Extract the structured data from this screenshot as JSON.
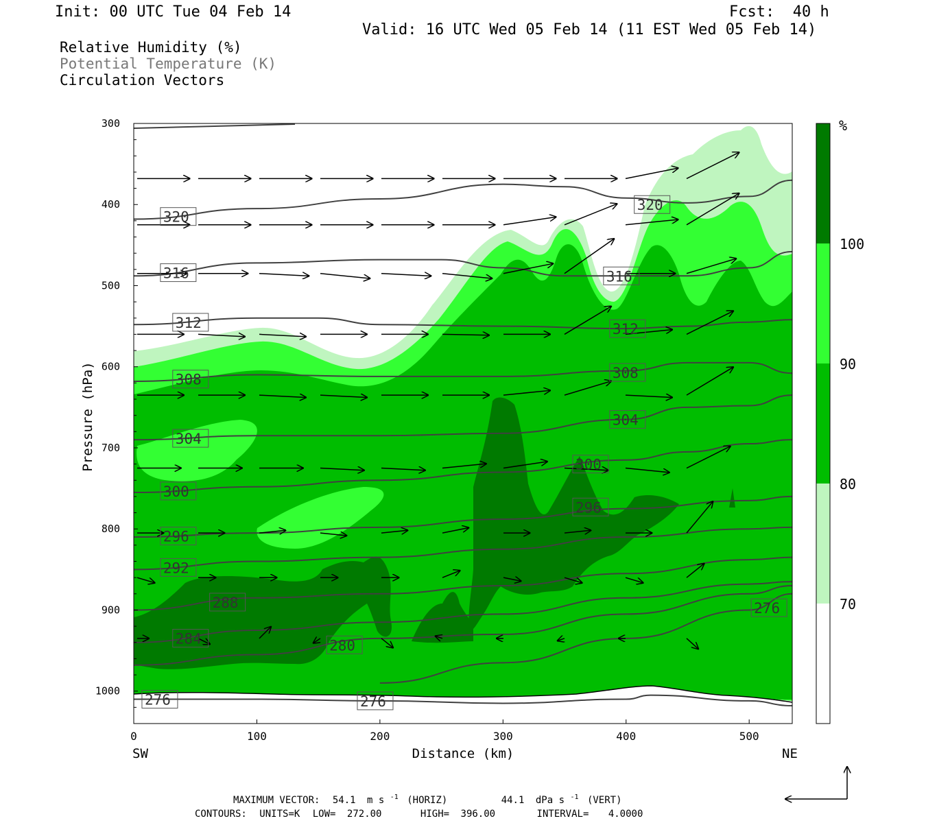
{
  "header": {
    "init": "Init: 00 UTC Tue 04 Feb 14",
    "fcst": "Fcst:  40 h",
    "valid": "Valid: 16 UTC Wed 05 Feb 14 (11 EST Wed 05 Feb 14)"
  },
  "legend": {
    "rh": "Relative Humidity (%)",
    "theta": "Potential Temperature (K)",
    "vectors": "Circulation Vectors"
  },
  "colors": {
    "rh_70": "#bff5bf",
    "rh_80": "#33ff33",
    "rh_90": "#00bd00",
    "rh_100": "#007a00",
    "contour": "#404040"
  },
  "chart_data": {
    "type": "contour",
    "xlabel": "Distance (km)",
    "ylabel": "Pressure (hPa)",
    "x_left_label": "SW",
    "x_right_label": "NE",
    "xlim": [
      0,
      535
    ],
    "ylim": [
      1040,
      300
    ],
    "x_ticks": [
      "0",
      "100",
      "200",
      "300",
      "400",
      "500"
    ],
    "y_ticks": [
      "300",
      "400",
      "500",
      "600",
      "700",
      "800",
      "900",
      "1000"
    ],
    "colorbar": {
      "unit": "%",
      "levels": [
        "70",
        "80",
        "90",
        "100"
      ]
    },
    "theta_contours": [
      {
        "label": "320",
        "pressure_at_x": [
          [
            0,
            418
          ],
          [
            100,
            405
          ],
          [
            200,
            393
          ],
          [
            300,
            375
          ],
          [
            350,
            378
          ],
          [
            400,
            392
          ],
          [
            450,
            398
          ],
          [
            500,
            390
          ],
          [
            535,
            370
          ]
        ]
      },
      {
        "label": "316",
        "pressure_at_x": [
          [
            0,
            488
          ],
          [
            100,
            472
          ],
          [
            200,
            468
          ],
          [
            250,
            468
          ],
          [
            300,
            478
          ],
          [
            350,
            488
          ],
          [
            400,
            488
          ],
          [
            450,
            488
          ],
          [
            500,
            478
          ],
          [
            535,
            458
          ]
        ]
      },
      {
        "label": "312",
        "pressure_at_x": [
          [
            0,
            548
          ],
          [
            100,
            540
          ],
          [
            150,
            540
          ],
          [
            200,
            548
          ],
          [
            300,
            550
          ],
          [
            400,
            553
          ],
          [
            450,
            550
          ],
          [
            500,
            545
          ],
          [
            535,
            542
          ]
        ]
      },
      {
        "label": "308",
        "pressure_at_x": [
          [
            0,
            618
          ],
          [
            100,
            610
          ],
          [
            200,
            612
          ],
          [
            300,
            612
          ],
          [
            400,
            605
          ],
          [
            450,
            595
          ],
          [
            500,
            595
          ],
          [
            535,
            608
          ]
        ]
      },
      {
        "label": "304",
        "pressure_at_x": [
          [
            0,
            690
          ],
          [
            100,
            685
          ],
          [
            200,
            685
          ],
          [
            300,
            682
          ],
          [
            400,
            665
          ],
          [
            450,
            650
          ],
          [
            500,
            648
          ],
          [
            535,
            635
          ]
        ]
      },
      {
        "label": "300",
        "pressure_at_x": [
          [
            0,
            755
          ],
          [
            100,
            748
          ],
          [
            200,
            740
          ],
          [
            300,
            730
          ],
          [
            400,
            715
          ],
          [
            450,
            705
          ],
          [
            500,
            695
          ],
          [
            535,
            690
          ]
        ]
      },
      {
        "label": "296",
        "pressure_at_x": [
          [
            0,
            810
          ],
          [
            100,
            805
          ],
          [
            200,
            798
          ],
          [
            300,
            788
          ],
          [
            400,
            775
          ],
          [
            500,
            765
          ],
          [
            535,
            760
          ]
        ]
      },
      {
        "label": "292",
        "pressure_at_x": [
          [
            0,
            850
          ],
          [
            100,
            840
          ],
          [
            200,
            835
          ],
          [
            300,
            825
          ],
          [
            400,
            810
          ],
          [
            500,
            800
          ],
          [
            535,
            798
          ]
        ]
      },
      {
        "label": "288",
        "pressure_at_x": [
          [
            0,
            900
          ],
          [
            100,
            885
          ],
          [
            200,
            880
          ],
          [
            300,
            870
          ],
          [
            400,
            855
          ],
          [
            500,
            838
          ],
          [
            535,
            835
          ]
        ]
      },
      {
        "label": "284",
        "pressure_at_x": [
          [
            0,
            940
          ],
          [
            100,
            925
          ],
          [
            200,
            915
          ],
          [
            300,
            905
          ],
          [
            400,
            885
          ],
          [
            500,
            868
          ],
          [
            535,
            865
          ]
        ]
      },
      {
        "label": "280",
        "pressure_at_x": [
          [
            0,
            968
          ],
          [
            100,
            955
          ],
          [
            200,
            935
          ],
          [
            300,
            930
          ],
          [
            400,
            905
          ],
          [
            500,
            880
          ],
          [
            535,
            870
          ]
        ]
      },
      {
        "label": "276",
        "pressure_at_x": [
          [
            200,
            990
          ],
          [
            300,
            965
          ],
          [
            400,
            935
          ],
          [
            500,
            900
          ],
          [
            535,
            880
          ]
        ]
      },
      {
        "label": "276",
        "pressure_at_x": [
          [
            0,
            1010
          ],
          [
            100,
            1010
          ],
          [
            200,
            1012
          ],
          [
            300,
            1015
          ],
          [
            400,
            1010
          ],
          [
            420,
            1005
          ],
          [
            500,
            1012
          ],
          [
            535,
            1018
          ]
        ]
      }
    ],
    "rh_regions": [
      {
        "level": "70",
        "note": "moist layer above white dry slot"
      },
      {
        "level": "80"
      },
      {
        "level": "90"
      },
      {
        "level": "100"
      }
    ],
    "max_vector": {
      "horiz": "54.1",
      "horiz_unit": "m s",
      "horiz_exp": "-1",
      "horiz_tag": "(HORIZ)",
      "vert": "44.1",
      "vert_unit": "dPa s",
      "vert_exp": "-1",
      "vert_tag": "(VERT)"
    }
  },
  "footer": {
    "max_vector_label": "MAXIMUM VECTOR:",
    "contours_label": "CONTOURS:",
    "units": "UNITS=K",
    "low": "LOW=",
    "low_val": "272.00",
    "high": "HIGH=",
    "high_val": "396.00",
    "interval": "INTERVAL=",
    "interval_val": "4.0000"
  }
}
